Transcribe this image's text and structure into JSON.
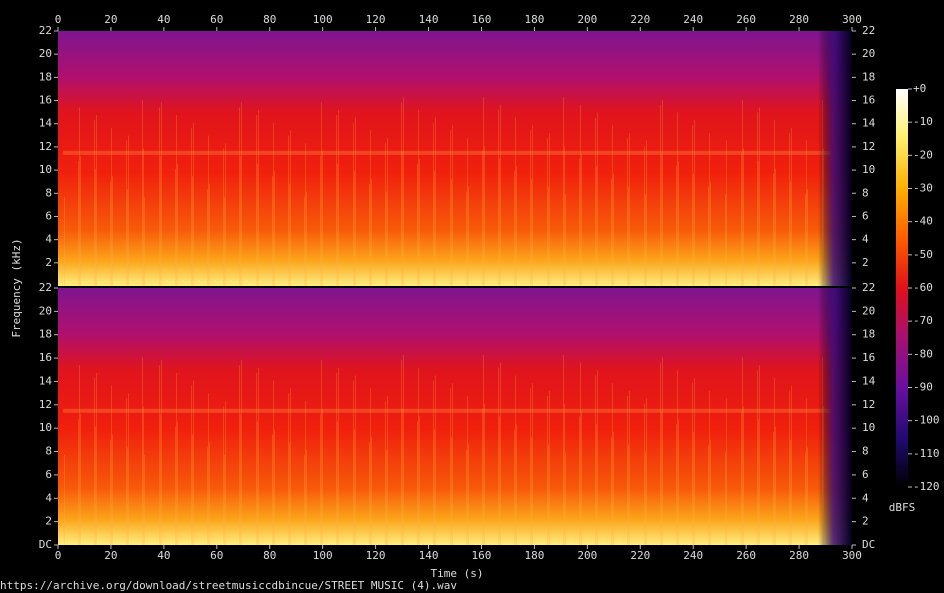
{
  "chart_data": {
    "type": "spectrogram",
    "x_label": "Time (s)",
    "y_label": "Frequency (kHz)",
    "xlim": [
      0,
      300
    ],
    "xticks": [
      0,
      20,
      40,
      60,
      80,
      100,
      120,
      140,
      160,
      180,
      200,
      220,
      240,
      260,
      280,
      300
    ],
    "panels": [
      {
        "ylim": [
          0,
          22
        ],
        "yticks": [
          2,
          4,
          6,
          8,
          10,
          12,
          14,
          16,
          18,
          20,
          22
        ]
      },
      {
        "ylim": [
          0,
          22
        ],
        "yticks": [
          {
            "value": 0,
            "label": "DC"
          },
          2,
          4,
          6,
          8,
          10,
          12,
          14,
          16,
          18,
          20,
          22
        ]
      }
    ],
    "colorbar": {
      "label": "dBFS",
      "lim": [
        0,
        -120
      ],
      "ticks": [
        {
          "value": 0,
          "label": "+0"
        },
        -10,
        -20,
        -30,
        -40,
        -50,
        -60,
        -70,
        -80,
        -90,
        -100,
        -110,
        -120
      ]
    },
    "source": "https://archive.org/download/streetmusiccdbincue/STREET MUSIC (4).wav"
  }
}
